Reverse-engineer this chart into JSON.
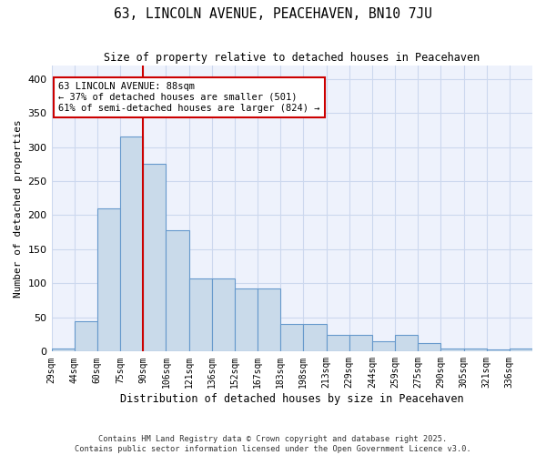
{
  "title": "63, LINCOLN AVENUE, PEACEHAVEN, BN10 7JU",
  "subtitle": "Size of property relative to detached houses in Peacehaven",
  "xlabel": "Distribution of detached houses by size in Peacehaven",
  "ylabel": "Number of detached properties",
  "categories": [
    "29sqm",
    "44sqm",
    "60sqm",
    "75sqm",
    "90sqm",
    "106sqm",
    "121sqm",
    "136sqm",
    "152sqm",
    "167sqm",
    "183sqm",
    "198sqm",
    "213sqm",
    "229sqm",
    "244sqm",
    "259sqm",
    "275sqm",
    "290sqm",
    "305sqm",
    "321sqm",
    "336sqm"
  ],
  "values": [
    4,
    44,
    210,
    315,
    275,
    178,
    107,
    107,
    93,
    93,
    40,
    40,
    25,
    25,
    15,
    25,
    13,
    5,
    5,
    3,
    4
  ],
  "bar_color": "#c9daea",
  "bar_edge_color": "#6699cc",
  "vline_x": 4,
  "vline_color": "#cc0000",
  "annotation_text": "63 LINCOLN AVENUE: 88sqm\n← 37% of detached houses are smaller (501)\n61% of semi-detached houses are larger (824) →",
  "annotation_box_color": "#ffffff",
  "annotation_box_edge": "#cc0000",
  "ylim": [
    0,
    420
  ],
  "yticks": [
    0,
    50,
    100,
    150,
    200,
    250,
    300,
    350,
    400
  ],
  "grid_color": "#ccd8ee",
  "bg_color": "#eef2fc",
  "footer_line1": "Contains HM Land Registry data © Crown copyright and database right 2025.",
  "footer_line2": "Contains public sector information licensed under the Open Government Licence v3.0.",
  "title_fontsize": 10.5,
  "subtitle_fontsize": 8.5,
  "annotation_fontsize": 7.5
}
